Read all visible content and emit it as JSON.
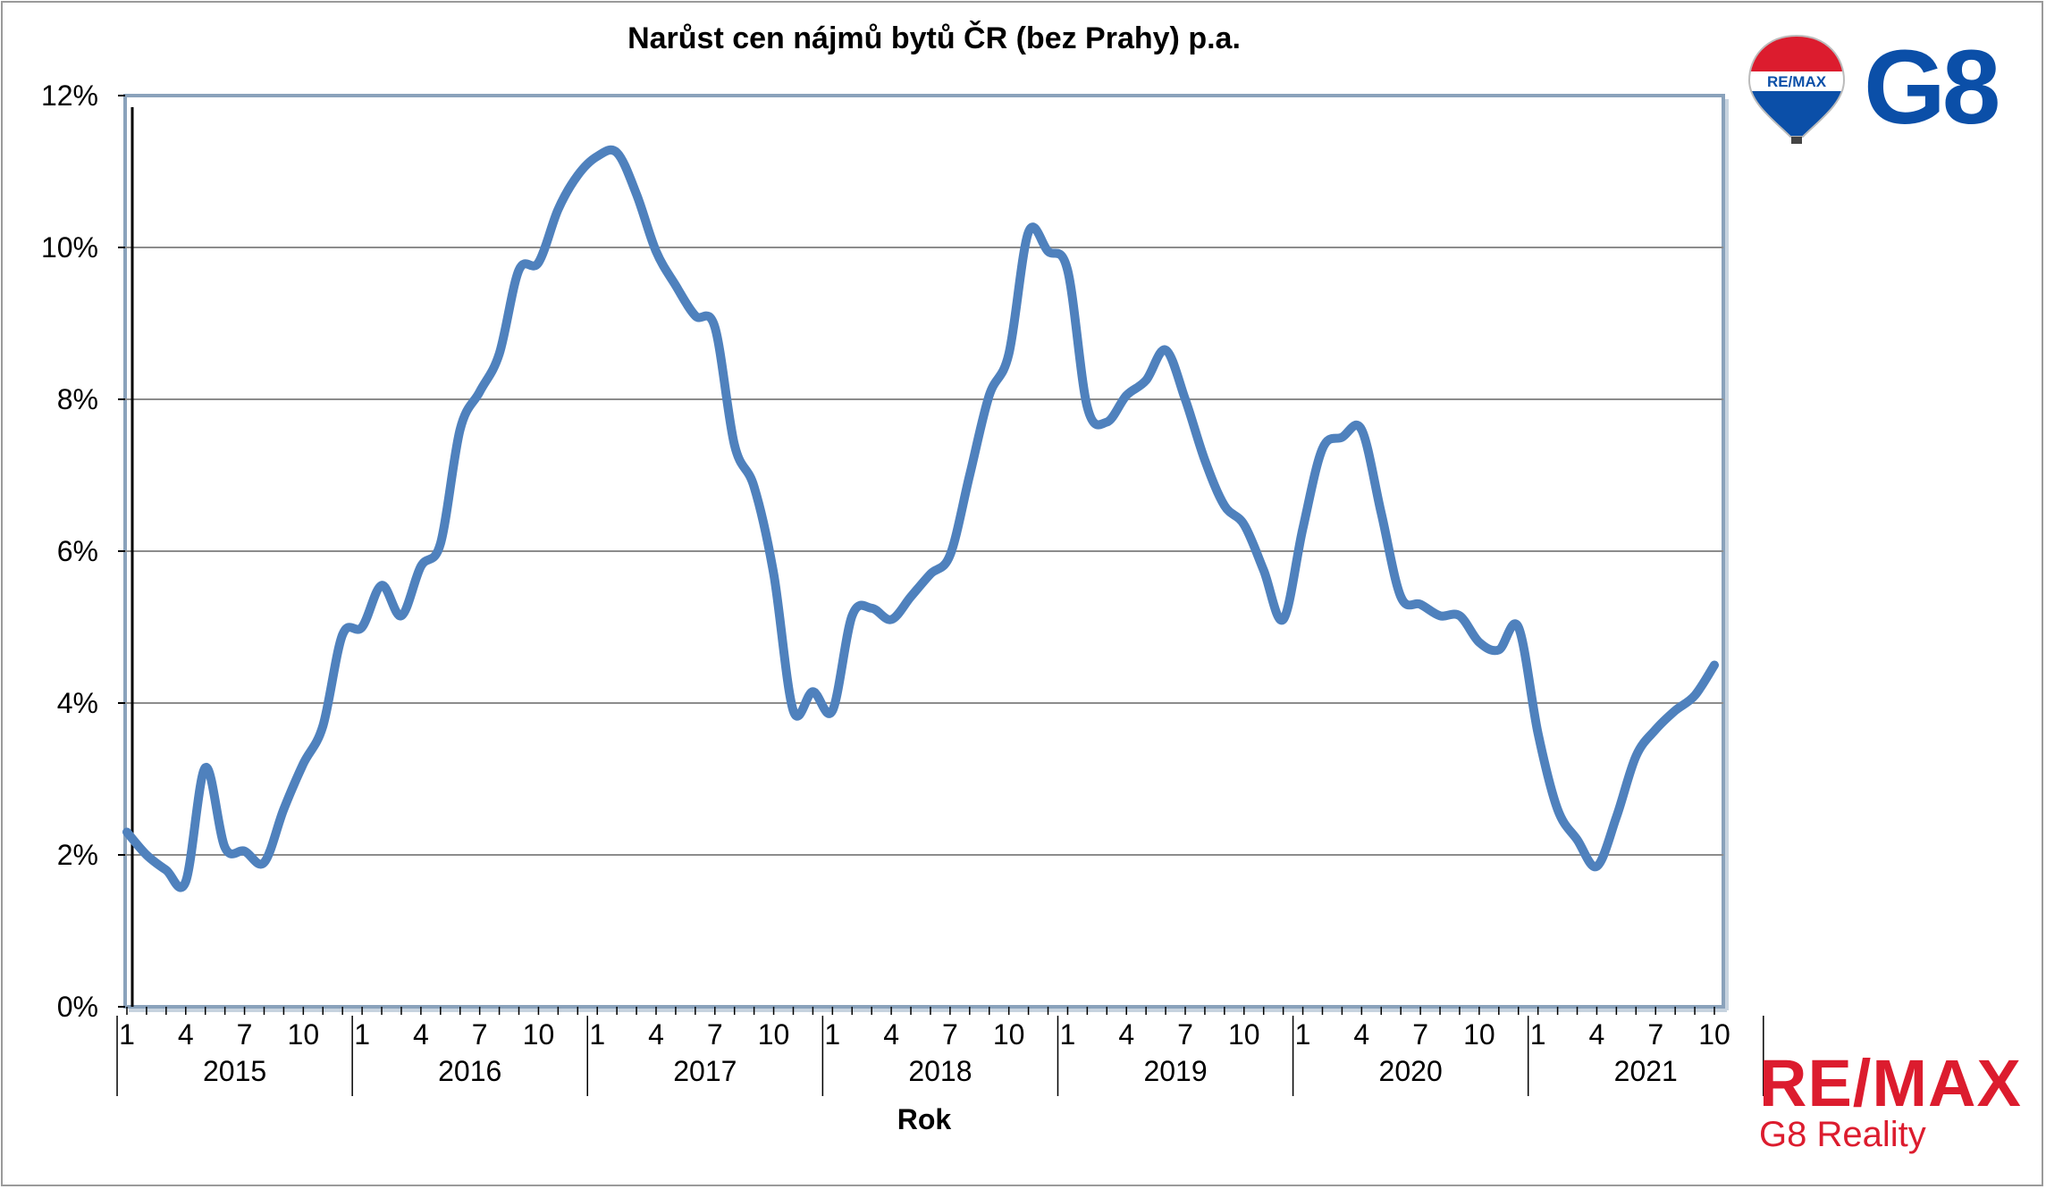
{
  "chart_data": {
    "type": "line",
    "title": "Narůst cen nájmů bytů ČR (bez Prahy) p.a.",
    "xlabel": "Rok",
    "ylabel": "",
    "ylim": [
      0,
      12
    ],
    "yticks": [
      "0%",
      "2%",
      "4%",
      "6%",
      "8%",
      "10%",
      "12%"
    ],
    "month_tick_labels": [
      "1",
      "4",
      "7",
      "10"
    ],
    "years": [
      "2015",
      "2016",
      "2017",
      "2018",
      "2019",
      "2020",
      "2021"
    ],
    "grid": true,
    "legend": "none",
    "line_color": "#4f81bd",
    "series": [
      {
        "values": [
          2.3,
          2.0,
          1.8,
          1.65,
          3.15,
          2.1,
          2.05,
          1.9,
          2.6,
          3.2,
          3.7,
          4.9,
          5.0,
          5.55,
          5.15,
          5.8,
          6.1,
          7.6,
          8.1,
          8.6,
          9.7,
          9.8,
          10.5,
          10.95,
          11.2,
          11.25,
          10.7,
          9.95,
          9.5,
          9.1,
          8.95,
          7.4,
          6.85,
          5.7,
          3.9,
          4.15,
          3.9,
          5.15,
          5.25,
          5.1,
          5.4,
          5.7,
          5.95,
          7.0,
          8.05,
          8.6,
          10.2,
          9.95,
          9.7,
          7.9,
          7.7,
          8.05,
          8.25,
          8.65,
          8.0,
          7.2,
          6.6,
          6.35,
          5.75,
          5.1,
          6.3,
          7.35,
          7.5,
          7.6,
          6.5,
          5.4,
          5.3,
          5.15,
          5.15,
          4.8,
          4.7,
          5.0,
          3.6,
          2.6,
          2.2,
          1.85,
          2.5,
          3.3,
          3.65,
          3.9,
          4.1,
          4.5
        ]
      }
    ]
  },
  "branding": {
    "top_logo_balloon_text": "RE/MAX",
    "top_logo_text": "G8",
    "bottom_logo_text": "RE/MAX",
    "bottom_logo_subtext": "G8 Reality",
    "colors": {
      "red": "#dc1c2e",
      "blue": "#0b4fa8"
    }
  }
}
